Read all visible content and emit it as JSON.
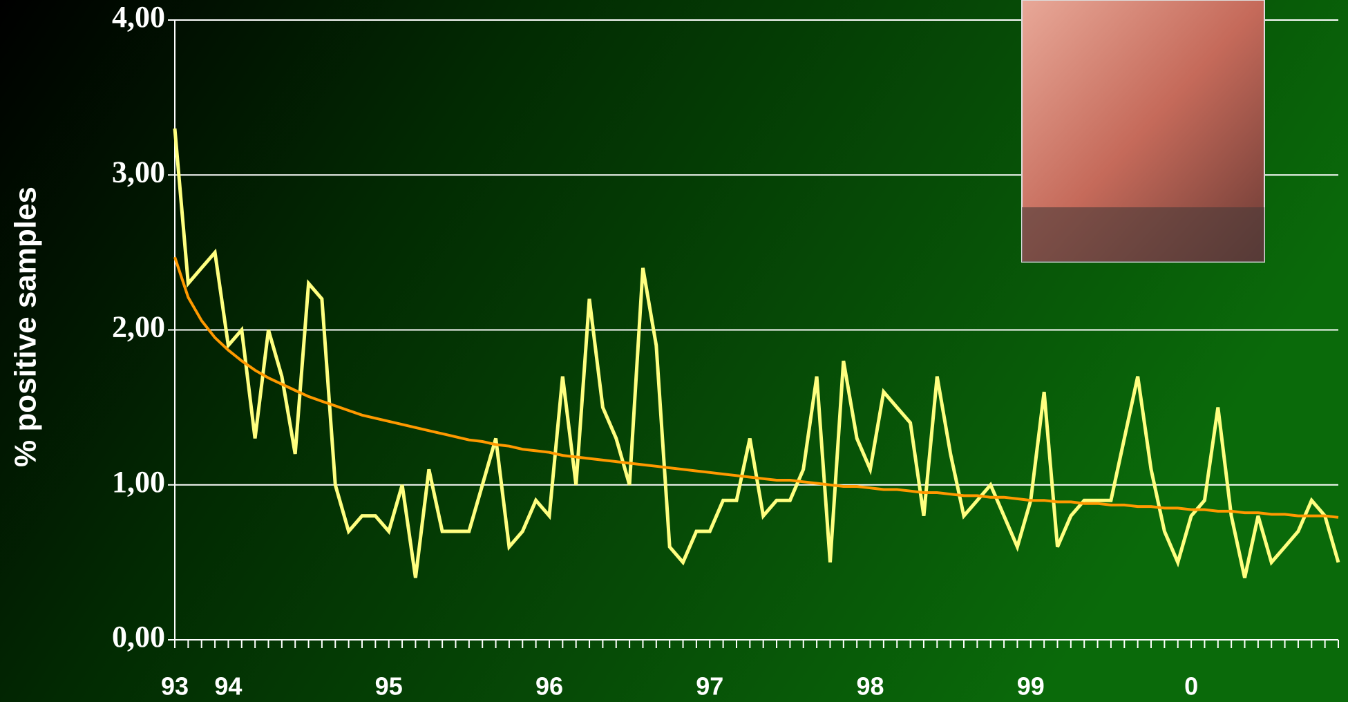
{
  "chart_data": {
    "type": "line",
    "y_label": "% positive samples",
    "categories": [
      "93",
      null,
      null,
      null,
      "94",
      null,
      null,
      null,
      null,
      null,
      null,
      null,
      null,
      null,
      null,
      null,
      "95",
      null,
      null,
      null,
      null,
      null,
      null,
      null,
      null,
      null,
      null,
      null,
      "96",
      null,
      null,
      null,
      null,
      null,
      null,
      null,
      null,
      null,
      null,
      null,
      "97",
      null,
      null,
      null,
      null,
      null,
      null,
      null,
      null,
      null,
      null,
      null,
      "98",
      null,
      null,
      null,
      null,
      null,
      null,
      null,
      null,
      null,
      null,
      null,
      "99",
      null,
      null,
      null,
      null,
      null,
      null,
      null,
      null,
      null,
      null,
      null,
      "0",
      null,
      null,
      null,
      null,
      null,
      null,
      null,
      null,
      null,
      null,
      null
    ],
    "series": [
      {
        "color": "#ffff80",
        "values": [
          3.3,
          2.3,
          2.4,
          2.5,
          1.9,
          2.0,
          1.3,
          2.0,
          1.7,
          1.2,
          2.3,
          2.2,
          1.0,
          0.7,
          0.8,
          0.8,
          0.7,
          1.0,
          0.4,
          1.1,
          0.7,
          0.7,
          0.7,
          1.0,
          1.3,
          0.6,
          0.7,
          0.9,
          0.8,
          1.7,
          1.0,
          2.2,
          1.5,
          1.3,
          1.0,
          2.4,
          1.9,
          0.6,
          0.5,
          0.7,
          0.7,
          0.9,
          0.9,
          1.3,
          0.8,
          0.9,
          0.9,
          1.1,
          1.7,
          0.5,
          1.8,
          1.3,
          1.1,
          1.6,
          1.5,
          1.4,
          0.8,
          1.7,
          1.2,
          0.8,
          0.9,
          1.0,
          0.8,
          0.6,
          0.9,
          1.6,
          0.6,
          0.8,
          0.9,
          0.9,
          0.9,
          1.3,
          1.7,
          1.1,
          0.7,
          0.5,
          0.8,
          0.9,
          1.5,
          0.8,
          0.4,
          0.8,
          0.5,
          0.6,
          0.7,
          0.9,
          0.8,
          0.5
        ]
      },
      {
        "color": "#ff9900",
        "values": [
          2.47,
          2.21,
          2.06,
          1.95,
          1.87,
          1.8,
          1.74,
          1.69,
          1.65,
          1.61,
          1.57,
          1.54,
          1.51,
          1.48,
          1.45,
          1.43,
          1.41,
          1.39,
          1.37,
          1.35,
          1.33,
          1.31,
          1.29,
          1.28,
          1.26,
          1.25,
          1.23,
          1.22,
          1.21,
          1.19,
          1.18,
          1.17,
          1.16,
          1.15,
          1.14,
          1.13,
          1.12,
          1.11,
          1.1,
          1.09,
          1.08,
          1.07,
          1.06,
          1.05,
          1.04,
          1.03,
          1.03,
          1.02,
          1.01,
          1.0,
          0.99,
          0.99,
          0.98,
          0.97,
          0.97,
          0.96,
          0.95,
          0.95,
          0.94,
          0.93,
          0.93,
          0.92,
          0.92,
          0.91,
          0.9,
          0.9,
          0.89,
          0.89,
          0.88,
          0.88,
          0.87,
          0.87,
          0.86,
          0.86,
          0.85,
          0.85,
          0.84,
          0.84,
          0.83,
          0.83,
          0.82,
          0.82,
          0.81,
          0.81,
          0.8,
          0.8,
          0.8,
          0.79
        ]
      }
    ],
    "ylim": [
      0,
      4
    ],
    "yticks": [
      {
        "value": 0,
        "label": "0,00"
      },
      {
        "value": 1,
        "label": "1,00"
      },
      {
        "value": 2,
        "label": "2,00"
      },
      {
        "value": 3,
        "label": "3,00"
      },
      {
        "value": 4,
        "label": "4,00"
      }
    ],
    "grid": true
  }
}
